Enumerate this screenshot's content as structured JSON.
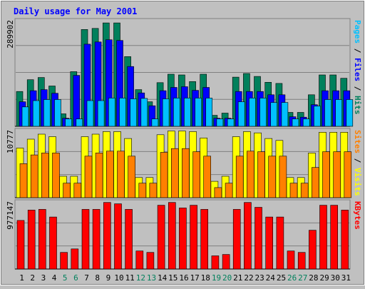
{
  "colors": {
    "background": "#c0c0c0",
    "panel": "#c0c0c0",
    "title": "#0000ff",
    "hits": "#00805c",
    "files": "#0000ff",
    "pages": "#00c0ff",
    "visits": "#ffff00",
    "sites": "#ff8000",
    "kbytes": "#ff0000",
    "weekday_label": "#000000",
    "weekend_label": "#00805c"
  },
  "chart_data": [
    {
      "type": "bar",
      "title": "Daily usage for May 2001",
      "panel": "hits-files-pages",
      "legend": [
        {
          "name": "Pages",
          "color": "#00c0ff"
        },
        {
          "name": "Files",
          "color": "#0000ff"
        },
        {
          "name": "Hits",
          "color": "#00805c"
        }
      ],
      "max_label": "289902",
      "ymax": 289902,
      "categories": [
        "1",
        "2",
        "3",
        "4",
        "5",
        "6",
        "7",
        "8",
        "9",
        "10",
        "11",
        "12",
        "13",
        "14",
        "15",
        "16",
        "17",
        "18",
        "19",
        "20",
        "21",
        "22",
        "23",
        "24",
        "25",
        "26",
        "27",
        "28",
        "29",
        "30",
        "31"
      ],
      "weekend_days": [
        "5",
        "6",
        "12",
        "13",
        "19",
        "20",
        "26",
        "27"
      ],
      "series": [
        {
          "name": "Hits",
          "values": [
            95000,
            127000,
            133000,
            110000,
            34000,
            149000,
            264000,
            267000,
            282000,
            282000,
            190000,
            100000,
            67000,
            119000,
            142000,
            140000,
            122000,
            142000,
            30000,
            36000,
            134000,
            144000,
            136000,
            120000,
            117000,
            38000,
            38000,
            86000,
            140000,
            140000,
            131000
          ]
        },
        {
          "name": "Files",
          "values": [
            67000,
            97000,
            100000,
            90000,
            22000,
            139000,
            224000,
            230000,
            236000,
            234000,
            163000,
            91000,
            56000,
            97000,
            106000,
            108000,
            98000,
            106000,
            22000,
            22000,
            95000,
            95000,
            95000,
            86000,
            86000,
            26000,
            25000,
            59000,
            97000,
            97000,
            97000
          ]
        },
        {
          "name": "Pages",
          "values": [
            53000,
            70000,
            73000,
            73000,
            20000,
            20000,
            70000,
            70000,
            77000,
            77000,
            75000,
            76000,
            20000,
            75000,
            77000,
            77000,
            77000,
            77000,
            20000,
            20000,
            67000,
            77000,
            77000,
            65000,
            65000,
            20000,
            20000,
            55000,
            73000,
            73000,
            73000
          ]
        }
      ]
    },
    {
      "type": "bar",
      "panel": "visits-sites",
      "legend": [
        {
          "name": "Sites",
          "color": "#ff8000"
        },
        {
          "name": "Visits",
          "color": "#ffff00"
        }
      ],
      "max_label": "10777",
      "ymax": 10777,
      "categories": [
        "1",
        "2",
        "3",
        "4",
        "5",
        "6",
        "7",
        "8",
        "9",
        "10",
        "11",
        "12",
        "13",
        "14",
        "15",
        "16",
        "17",
        "18",
        "19",
        "20",
        "21",
        "22",
        "23",
        "24",
        "25",
        "26",
        "27",
        "28",
        "29",
        "30",
        "31"
      ],
      "series": [
        {
          "name": "Visits",
          "values": [
            7900,
            9300,
            10100,
            9700,
            3400,
            3400,
            9700,
            10100,
            10500,
            10500,
            9400,
            3200,
            3200,
            10000,
            10600,
            10600,
            10500,
            9500,
            2600,
            3400,
            9700,
            10500,
            10300,
            9400,
            9100,
            3200,
            3200,
            7100,
            10400,
            10400,
            10400
          ]
        },
        {
          "name": "Sites",
          "values": [
            5400,
            6800,
            7100,
            7100,
            2300,
            2300,
            6600,
            7100,
            7400,
            7400,
            6600,
            2300,
            2300,
            7200,
            7800,
            7800,
            7300,
            6600,
            1600,
            2300,
            6600,
            7400,
            7300,
            6600,
            6600,
            2300,
            2300,
            4800,
            7300,
            7300,
            7300
          ]
        }
      ]
    },
    {
      "type": "bar",
      "panel": "kbytes",
      "legend": [
        {
          "name": "KBytes",
          "color": "#ff0000"
        }
      ],
      "max_label": "977147",
      "ymax": 977147,
      "categories": [
        "1",
        "2",
        "3",
        "4",
        "5",
        "6",
        "7",
        "8",
        "9",
        "10",
        "11",
        "12",
        "13",
        "14",
        "15",
        "16",
        "17",
        "18",
        "19",
        "20",
        "21",
        "22",
        "23",
        "24",
        "25",
        "26",
        "27",
        "28",
        "29",
        "30",
        "31"
      ],
      "series": [
        {
          "name": "KBytes",
          "values": [
            700000,
            850000,
            860000,
            750000,
            240000,
            290000,
            860000,
            860000,
            960000,
            940000,
            860000,
            260000,
            240000,
            920000,
            960000,
            880000,
            920000,
            860000,
            190000,
            210000,
            860000,
            960000,
            890000,
            750000,
            750000,
            260000,
            240000,
            560000,
            920000,
            920000,
            850000
          ]
        }
      ]
    }
  ]
}
